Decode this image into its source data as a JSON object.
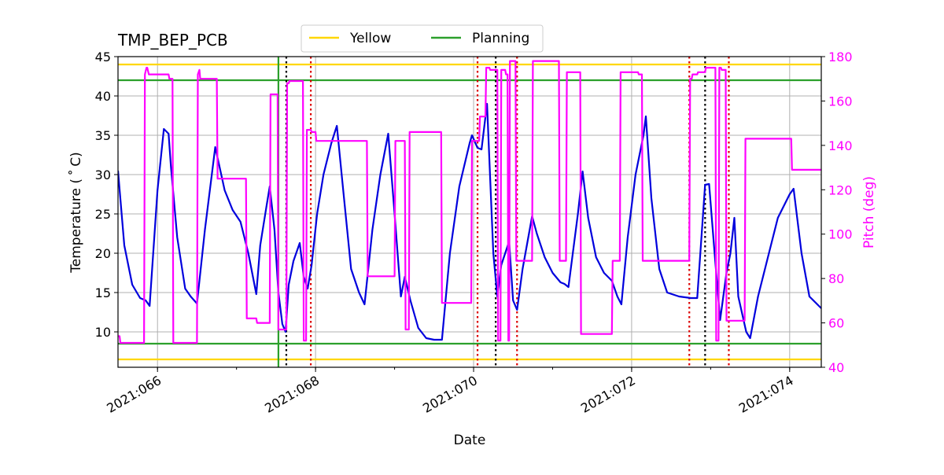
{
  "chart_data": {
    "type": "line",
    "title": "TMP_BEP_PCB",
    "xlabel": "Date",
    "ylabel": "Temperature ($^\\circ$C)",
    "ylabel_display": "Temperature ( ˚ C)",
    "ylabel_right": "Pitch (deg)",
    "xlim": [
      65.5,
      74.4
    ],
    "ylim": [
      5.5,
      45
    ],
    "ylim_right": [
      40,
      180
    ],
    "x_ticks": [
      {
        "value": 66,
        "label": "2021:066"
      },
      {
        "value": 68,
        "label": "2021:068"
      },
      {
        "value": 70,
        "label": "2021:070"
      },
      {
        "value": 72,
        "label": "2021:072"
      },
      {
        "value": 74,
        "label": "2021:074"
      }
    ],
    "y_ticks": [
      10,
      15,
      20,
      25,
      30,
      35,
      40,
      45
    ],
    "y_ticks_right": [
      40,
      60,
      80,
      100,
      120,
      140,
      160,
      180
    ],
    "grid": true,
    "legend": {
      "placement": "top-center",
      "entries": [
        {
          "label": "Yellow",
          "color": "#ffd700"
        },
        {
          "label": "Planning",
          "color": "#2ca02c"
        }
      ]
    },
    "limits": [
      {
        "name": "Yellow",
        "color": "#ffd700",
        "values": [
          44,
          6.5
        ]
      },
      {
        "name": "Planning",
        "color": "#2ca02c",
        "values": [
          42,
          8.5
        ]
      }
    ],
    "vertical_lines": [
      {
        "x": 67.53,
        "color": "#2ca02c",
        "style": "solid"
      },
      {
        "x": 67.63,
        "color": "#000000",
        "style": "dotted"
      },
      {
        "x": 67.94,
        "color": "#dd0000",
        "style": "dotted"
      },
      {
        "x": 70.05,
        "color": "#dd0000",
        "style": "dotted"
      },
      {
        "x": 70.28,
        "color": "#000000",
        "style": "dotted"
      },
      {
        "x": 70.55,
        "color": "#dd0000",
        "style": "dotted"
      },
      {
        "x": 72.73,
        "color": "#dd0000",
        "style": "dotted"
      },
      {
        "x": 72.93,
        "color": "#000000",
        "style": "dotted"
      },
      {
        "x": 73.23,
        "color": "#dd0000",
        "style": "dotted"
      }
    ],
    "series": [
      {
        "color": "#0000dd",
        "axis": "left",
        "x": [
          65.5,
          65.58,
          65.68,
          65.78,
          65.85,
          65.9,
          66.0,
          66.08,
          66.14,
          66.17,
          66.25,
          66.35,
          66.42,
          66.5,
          66.6,
          66.7,
          66.73,
          66.85,
          66.95,
          67.05,
          67.15,
          67.25,
          67.3,
          67.38,
          67.42,
          67.48,
          67.53,
          67.58,
          67.62,
          67.66,
          67.72,
          67.8,
          67.85,
          67.9,
          67.95,
          68.02,
          68.1,
          68.2,
          68.27,
          68.35,
          68.45,
          68.55,
          68.62,
          68.72,
          68.82,
          68.92,
          69.0,
          69.08,
          69.13,
          69.2,
          69.3,
          69.4,
          69.5,
          69.6,
          69.7,
          69.82,
          69.95,
          69.98,
          70.05,
          70.1,
          70.17,
          70.25,
          70.3,
          70.35,
          70.45,
          70.48,
          70.5,
          70.55,
          70.62,
          70.74,
          70.8,
          70.9,
          71.0,
          71.1,
          71.15,
          71.2,
          71.32,
          71.38,
          71.45,
          71.55,
          71.65,
          71.75,
          71.82,
          71.87,
          71.95,
          72.05,
          72.15,
          72.18,
          72.25,
          72.35,
          72.45,
          72.6,
          72.75,
          72.83,
          72.93,
          72.98,
          73.05,
          73.12,
          73.2,
          73.25,
          73.3,
          73.35,
          73.45,
          73.5,
          73.6,
          73.75,
          73.85,
          73.95,
          74.0,
          74.05,
          74.15,
          74.25,
          74.4
        ],
        "y": [
          30.5,
          21,
          16,
          14.3,
          14,
          13.3,
          28,
          35.8,
          35.2,
          31,
          22,
          15.5,
          14.5,
          13.6,
          23,
          31,
          33.5,
          28,
          25.5,
          24,
          20,
          14.8,
          21,
          26,
          28.5,
          23,
          15,
          11,
          10,
          16,
          19,
          21.3,
          17,
          15.5,
          18.5,
          25,
          30,
          34,
          36.2,
          28,
          18,
          15,
          13.5,
          23,
          30,
          35.2,
          25,
          14.5,
          17,
          14,
          10.5,
          9.2,
          9.0,
          9.0,
          20,
          28.5,
          34,
          35,
          33.4,
          33.2,
          39,
          20,
          14.5,
          18.5,
          21.5,
          17,
          14,
          12.8,
          18,
          24.7,
          22.5,
          19.5,
          17.5,
          16.3,
          16.1,
          15.7,
          25,
          30.4,
          24.5,
          19.5,
          17.5,
          16.5,
          14.5,
          13.5,
          22,
          30,
          35,
          37.4,
          27,
          18,
          15,
          14.5,
          14.3,
          14.3,
          28.7,
          28.8,
          20,
          11.5,
          17.5,
          20,
          24.5,
          14.5,
          10,
          9.2,
          14.5,
          20.5,
          24.5,
          26.5,
          27.5,
          28.2,
          20,
          14.5,
          13.0
        ]
      },
      {
        "color": "#ff00ff",
        "axis": "right",
        "x": [
          65.5,
          65.52,
          65.53,
          65.83,
          65.84,
          65.86,
          65.87,
          65.89,
          65.9,
          66.14,
          66.15,
          66.19,
          66.2,
          66.5,
          66.51,
          66.53,
          66.54,
          66.75,
          66.76,
          67.12,
          67.13,
          67.25,
          67.26,
          67.42,
          67.43,
          67.52,
          67.53,
          67.63,
          67.64,
          67.66,
          67.67,
          67.84,
          67.85,
          67.88,
          67.89,
          67.94,
          67.95,
          68.0,
          68.01,
          68.35,
          68.36,
          68.65,
          68.66,
          69.0,
          69.01,
          69.13,
          69.14,
          69.18,
          69.19,
          69.59,
          69.6,
          69.97,
          69.98,
          70.03,
          70.04,
          70.07,
          70.08,
          70.15,
          70.16,
          70.2,
          70.21,
          70.3,
          70.31,
          70.34,
          70.35,
          70.4,
          70.41,
          70.43,
          70.44,
          70.45,
          70.46,
          70.53,
          70.54,
          70.74,
          70.75,
          71.08,
          71.09,
          71.17,
          71.18,
          71.35,
          71.36,
          71.75,
          71.76,
          71.85,
          71.86,
          72.06,
          72.07,
          72.08,
          72.09,
          72.13,
          72.14,
          72.73,
          72.74,
          72.76,
          72.77,
          72.83,
          72.84,
          72.93,
          72.94,
          73.06,
          73.07,
          73.1,
          73.11,
          73.13,
          73.14,
          73.19,
          73.2,
          73.43,
          73.44,
          73.82,
          73.83,
          74.02,
          74.03,
          74.4
        ],
        "y": [
          54,
          54,
          51,
          51,
          172,
          175,
          175,
          172,
          172,
          172,
          170,
          170,
          51,
          51,
          172,
          174,
          170,
          170,
          125,
          125,
          62,
          62,
          60,
          60,
          163,
          163,
          57,
          57,
          168,
          168,
          169,
          169,
          52,
          52,
          147,
          147,
          146,
          146,
          142,
          142,
          142,
          142,
          81,
          81,
          142,
          142,
          57,
          57,
          146,
          146,
          69,
          69,
          142,
          142,
          142,
          142,
          153,
          153,
          175,
          175,
          174,
          174,
          52,
          52,
          174,
          174,
          172,
          172,
          52,
          52,
          178,
          178,
          88,
          88,
          178,
          178,
          88,
          88,
          173,
          173,
          55,
          55,
          88,
          88,
          173,
          173,
          173,
          173,
          172,
          172,
          88,
          88,
          170,
          170,
          172,
          172,
          173,
          173,
          175,
          175,
          52,
          52,
          175,
          175,
          174,
          174,
          61,
          61,
          143,
          143,
          143,
          143,
          129,
          129
        ]
      }
    ]
  }
}
